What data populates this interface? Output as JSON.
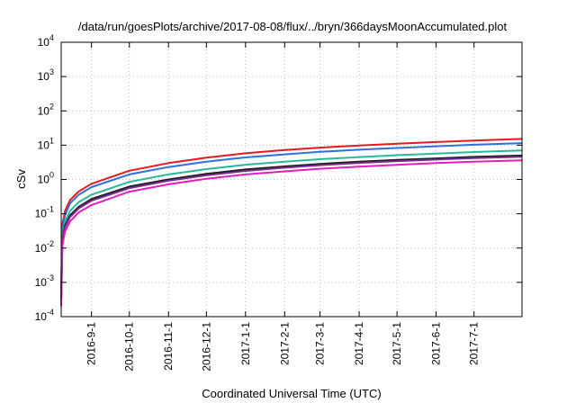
{
  "chart_data": {
    "type": "line",
    "title": "/data/run/goesPlots/archive/2017-08-08/flux/../bryn/366daysMoonAccumulated.plot",
    "xlabel": "Coordinated Universal Time (UTC)",
    "ylabel": "cSv",
    "yscale": "log",
    "ylim": [
      0.0001,
      10000
    ],
    "xlim": [
      "2016-08-08",
      "2017-08-08"
    ],
    "grid": true,
    "y_ticks": [
      {
        "base": "10",
        "exp": "-4",
        "value": 0.0001
      },
      {
        "base": "10",
        "exp": "-3",
        "value": 0.001
      },
      {
        "base": "10",
        "exp": "-2",
        "value": 0.01
      },
      {
        "base": "10",
        "exp": "-1",
        "value": 0.1
      },
      {
        "base": "10",
        "exp": "0",
        "value": 1
      },
      {
        "base": "10",
        "exp": "1",
        "value": 10
      },
      {
        "base": "10",
        "exp": "2",
        "value": 100
      },
      {
        "base": "10",
        "exp": "3",
        "value": 1000
      },
      {
        "base": "10",
        "exp": "4",
        "value": 10000
      }
    ],
    "x_ticks": [
      "2016-9-1",
      "2016-10-1",
      "2016-11-1",
      "2016-12-1",
      "2017-1-1",
      "2017-2-1",
      "2017-3-1",
      "2017-4-1",
      "2017-5-1",
      "2017-6-1",
      "2017-7-1"
    ],
    "x_tick_dates": [
      "2016-09-01",
      "2016-10-01",
      "2016-11-01",
      "2016-12-01",
      "2017-01-01",
      "2017-02-01",
      "2017-03-01",
      "2017-04-01",
      "2017-05-01",
      "2017-06-01",
      "2017-07-01"
    ],
    "series": [
      {
        "color": "#e41a1c",
        "x": [
          "2016-08-08",
          "2016-08-09",
          "2016-08-11",
          "2016-08-15",
          "2016-08-22",
          "2016-09-01",
          "2016-10-01",
          "2016-11-01",
          "2016-12-01",
          "2017-01-01",
          "2017-02-01",
          "2017-03-01",
          "2017-04-01",
          "2017-05-01",
          "2017-06-01",
          "2017-07-01",
          "2017-08-08"
        ],
        "y": [
          0.0008,
          0.05,
          0.12,
          0.25,
          0.45,
          0.75,
          1.8,
          3.0,
          4.3,
          5.8,
          7.2,
          8.5,
          9.8,
          11.0,
          12.3,
          13.6,
          15.2
        ]
      },
      {
        "color": "#2f6fdc",
        "x": [
          "2016-08-08",
          "2016-08-09",
          "2016-08-11",
          "2016-08-15",
          "2016-08-22",
          "2016-09-01",
          "2016-10-01",
          "2016-11-01",
          "2016-12-01",
          "2017-01-01",
          "2017-02-01",
          "2017-03-01",
          "2017-04-01",
          "2017-05-01",
          "2017-06-01",
          "2017-07-01",
          "2017-08-08"
        ],
        "y": [
          0.0006,
          0.04,
          0.09,
          0.2,
          0.36,
          0.6,
          1.4,
          2.3,
          3.3,
          4.4,
          5.4,
          6.4,
          7.4,
          8.3,
          9.3,
          10.3,
          11.5
        ]
      },
      {
        "color": "#29b99a",
        "x": [
          "2016-08-08",
          "2016-08-09",
          "2016-08-11",
          "2016-08-15",
          "2016-08-22",
          "2016-09-01",
          "2016-10-01",
          "2016-11-01",
          "2016-12-01",
          "2017-01-01",
          "2017-02-01",
          "2017-03-01",
          "2017-04-01",
          "2017-05-01",
          "2017-06-01",
          "2017-07-01",
          "2017-08-08"
        ],
        "y": [
          0.0004,
          0.025,
          0.06,
          0.12,
          0.22,
          0.36,
          0.85,
          1.4,
          2.0,
          2.7,
          3.3,
          3.9,
          4.5,
          5.1,
          5.7,
          6.3,
          7.0
        ]
      },
      {
        "color": "#1a1a1a",
        "x": [
          "2016-08-08",
          "2016-08-09",
          "2016-08-11",
          "2016-08-15",
          "2016-08-22",
          "2016-09-01",
          "2016-10-01",
          "2016-11-01",
          "2016-12-01",
          "2017-01-01",
          "2017-02-01",
          "2017-03-01",
          "2017-04-01",
          "2017-05-01",
          "2017-06-01",
          "2017-07-01",
          "2017-08-08"
        ],
        "y": [
          0.0003,
          0.02,
          0.045,
          0.09,
          0.16,
          0.27,
          0.62,
          1.0,
          1.45,
          1.95,
          2.4,
          2.85,
          3.3,
          3.7,
          4.1,
          4.55,
          5.0
        ]
      },
      {
        "color": "#7a2c8c",
        "x": [
          "2016-08-08",
          "2016-08-09",
          "2016-08-11",
          "2016-08-15",
          "2016-08-22",
          "2016-09-01",
          "2016-10-01",
          "2016-11-01",
          "2016-12-01",
          "2017-01-01",
          "2017-02-01",
          "2017-03-01",
          "2017-04-01",
          "2017-05-01",
          "2017-06-01",
          "2017-07-01",
          "2017-08-08"
        ],
        "y": [
          0.0003,
          0.018,
          0.04,
          0.08,
          0.145,
          0.24,
          0.56,
          0.92,
          1.32,
          1.78,
          2.2,
          2.62,
          3.03,
          3.42,
          3.8,
          4.2,
          4.6
        ]
      },
      {
        "color": "#e020b8",
        "x": [
          "2016-08-08",
          "2016-08-09",
          "2016-08-11",
          "2016-08-15",
          "2016-08-22",
          "2016-09-01",
          "2016-10-01",
          "2016-11-01",
          "2016-12-01",
          "2017-01-01",
          "2017-02-01",
          "2017-03-01",
          "2017-04-01",
          "2017-05-01",
          "2017-06-01",
          "2017-07-01",
          "2017-08-08"
        ],
        "y": [
          0.0002,
          0.012,
          0.03,
          0.06,
          0.11,
          0.18,
          0.44,
          0.72,
          1.05,
          1.4,
          1.72,
          2.05,
          2.37,
          2.68,
          3.0,
          3.3,
          3.6
        ]
      }
    ]
  }
}
